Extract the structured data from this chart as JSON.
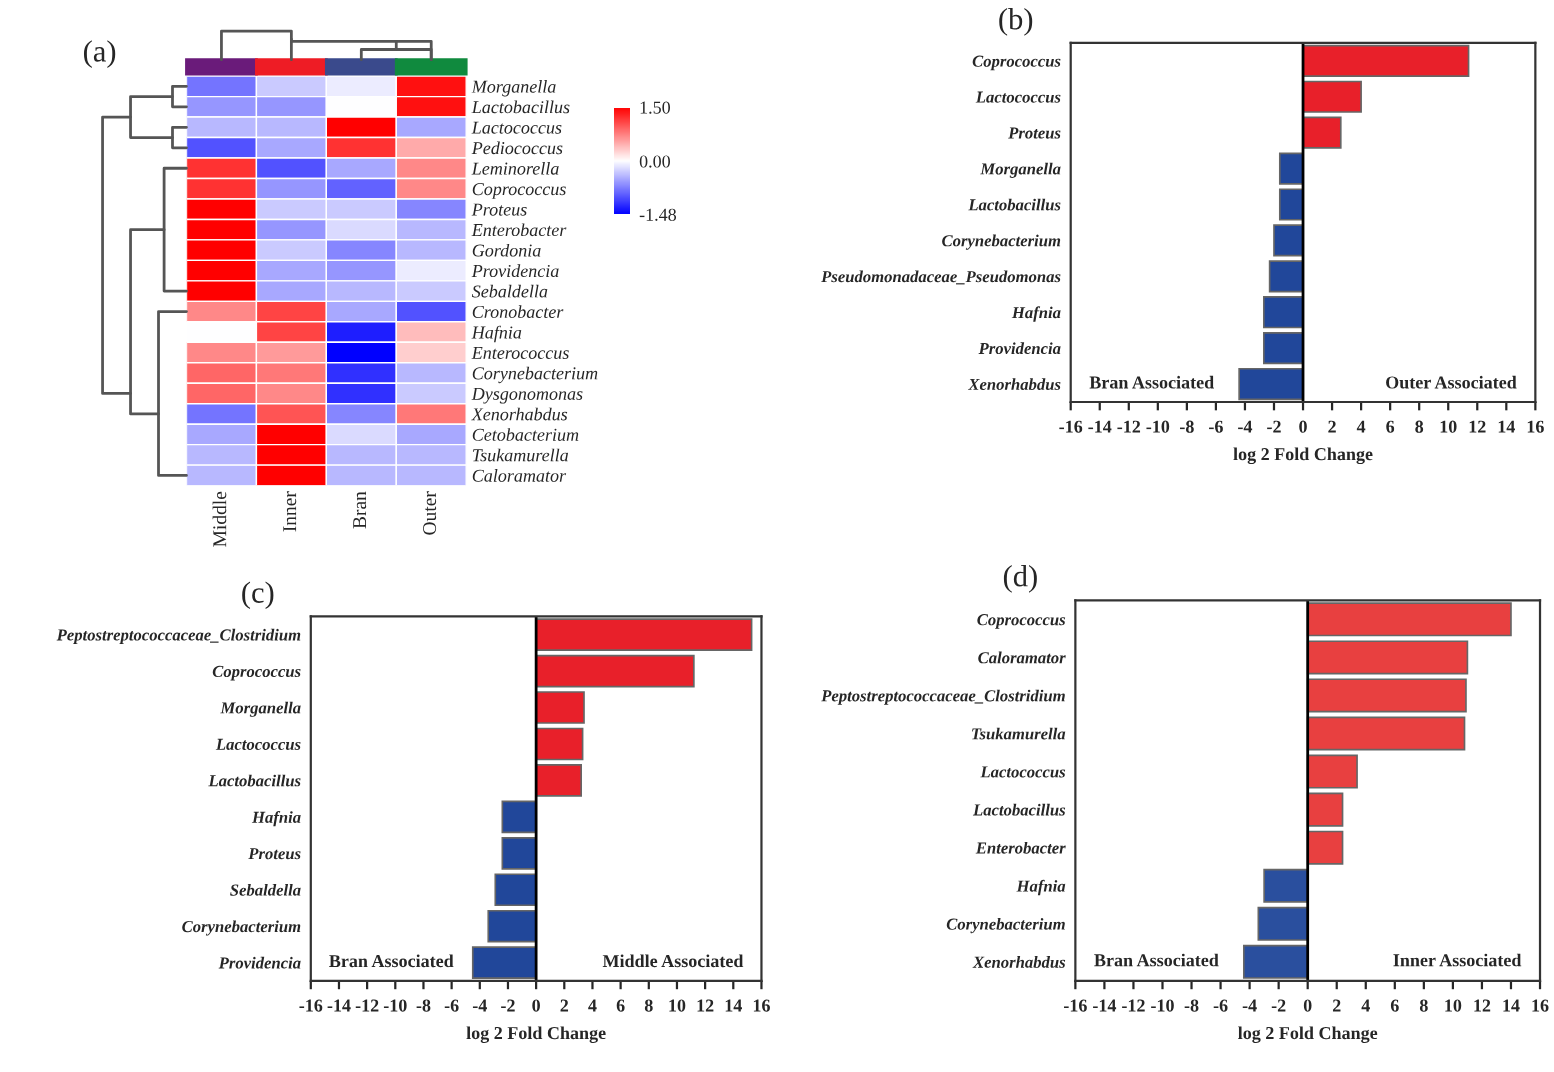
{
  "chart_data": [
    {
      "type": "heatmap",
      "title": "(a)",
      "categories": [
        "Middle",
        "Inner",
        "Bran",
        "Outer"
      ],
      "y_categories": [
        "Morganella",
        "Lactobacillus",
        "Lactococcus",
        "Pediococcus",
        "Leminorella",
        "Coprococcus",
        "Proteus",
        "Enterobacter",
        "Gordonia",
        "Providencia",
        "Sebaldella",
        "Cronobacter",
        "Hafnia",
        "Enterococcus",
        "Corynebacterium",
        "Dysgonomonas",
        "Xenorhabdus",
        "Cetobacterium",
        "Tsukamurella",
        "Caloramator"
      ],
      "cells": [
        [
          -0.8,
          -0.3,
          -0.1,
          1.4
        ],
        [
          -0.6,
          -0.6,
          0.0,
          1.4
        ],
        [
          -0.4,
          -0.4,
          1.5,
          -0.5
        ],
        [
          -1.0,
          -0.5,
          1.2,
          0.5
        ],
        [
          1.2,
          -1.0,
          -0.5,
          0.7
        ],
        [
          1.2,
          -0.6,
          -0.9,
          0.7
        ],
        [
          1.5,
          -0.3,
          -0.3,
          -0.7
        ],
        [
          1.5,
          -0.6,
          -0.2,
          -0.4
        ],
        [
          1.5,
          -0.3,
          -0.7,
          -0.4
        ],
        [
          1.5,
          -0.5,
          -0.6,
          -0.1
        ],
        [
          1.5,
          -0.5,
          -0.4,
          -0.3
        ],
        [
          0.7,
          1.1,
          -0.5,
          -1.0
        ],
        [
          0.0,
          1.1,
          -1.3,
          0.4
        ],
        [
          0.7,
          0.6,
          -1.48,
          0.3
        ],
        [
          0.9,
          0.8,
          -1.2,
          -0.4
        ],
        [
          0.9,
          0.7,
          -1.2,
          -0.3
        ],
        [
          -0.8,
          1.0,
          -0.7,
          0.8
        ],
        [
          -0.5,
          1.5,
          -0.2,
          -0.5
        ],
        [
          -0.4,
          1.5,
          -0.4,
          -0.4
        ],
        [
          -0.4,
          1.5,
          -0.4,
          -0.4
        ]
      ],
      "clim": [
        -1.48,
        1.5
      ],
      "cticks": [
        {
          "value": 1.5,
          "label": "1.50"
        },
        {
          "value": 0.0,
          "label": "0.00"
        },
        {
          "value": -1.48,
          "label": "-1.48"
        }
      ]
    },
    {
      "type": "bar",
      "orientation": "horizontal",
      "title": "(b)",
      "xlabel": "log 2 Fold Change",
      "categories": [
        "Coprococcus",
        "Lactococcus",
        "Proteus",
        "Morganella",
        "Lactobacillus",
        "Corynebacterium",
        "Pseudomonadaceae_Pseudomonas",
        "Hafnia",
        "Providencia",
        "Xenorhabdus"
      ],
      "values": [
        11.4,
        4.0,
        2.6,
        -1.6,
        -1.6,
        -2.0,
        -2.3,
        -2.7,
        -2.7,
        -4.4
      ],
      "colors": [
        "#e8202a",
        "#e8202a",
        "#e8202a",
        "#21479a",
        "#21479a",
        "#21479a",
        "#21479a",
        "#21479a",
        "#21479a",
        "#21479a"
      ],
      "xlim": [
        -16,
        16
      ],
      "xticks": [
        -16,
        -14,
        -12,
        -10,
        -8,
        -6,
        -4,
        -2,
        0,
        2,
        4,
        6,
        8,
        10,
        12,
        14,
        16
      ],
      "ref_lines": [
        {
          "axis": "x",
          "value": 0,
          "label": null,
          "color": "#000000"
        }
      ],
      "annotations": [
        "Bran Associated",
        "Outer Associated"
      ]
    },
    {
      "type": "bar",
      "orientation": "horizontal",
      "title": "(c)",
      "xlabel": "log 2 Fold Change",
      "categories": [
        "Peptostreptococcaceae_Clostridium",
        "Coprococcus",
        "Morganella",
        "Lactococcus",
        "Lactobacillus",
        "Hafnia",
        "Proteus",
        "Sebaldella",
        "Corynebacterium",
        "Providencia"
      ],
      "values": [
        15.3,
        11.2,
        3.4,
        3.3,
        3.2,
        -2.4,
        -2.4,
        -2.9,
        -3.4,
        -4.5
      ],
      "colors": [
        "#e8202a",
        "#e8202a",
        "#e8202a",
        "#e8202a",
        "#e8202a",
        "#21479a",
        "#21479a",
        "#21479a",
        "#21479a",
        "#21479a"
      ],
      "xlim": [
        -16,
        16
      ],
      "xticks": [
        -16,
        -14,
        -12,
        -10,
        -8,
        -6,
        -4,
        -2,
        0,
        2,
        4,
        6,
        8,
        10,
        12,
        14,
        16
      ],
      "ref_lines": [
        {
          "axis": "x",
          "value": 0,
          "label": null,
          "color": "#000000"
        }
      ],
      "annotations": [
        "Bran Associated",
        "Middle Associated"
      ]
    },
    {
      "type": "bar",
      "orientation": "horizontal",
      "title": "(d)",
      "xlabel": "log 2 Fold Change",
      "categories": [
        "Coprococcus",
        "Caloramator",
        "Peptostreptococcaceae_Clostridium",
        "Tsukamurella",
        "Lactococcus",
        "Lactobacillus",
        "Enterobacter",
        "Hafnia",
        "Corynebacterium",
        "Xenorhabdus"
      ],
      "values": [
        14.0,
        11.0,
        10.9,
        10.8,
        3.4,
        2.4,
        2.4,
        -3.0,
        -3.4,
        -4.4
      ],
      "colors": [
        "#e84040",
        "#e84040",
        "#e84040",
        "#e84040",
        "#e84040",
        "#e84040",
        "#e84040",
        "#2a4f9e",
        "#2a4f9e",
        "#2a4f9e"
      ],
      "xlim": [
        -16,
        16
      ],
      "xticks": [
        -16,
        -14,
        -12,
        -10,
        -8,
        -6,
        -4,
        -2,
        0,
        2,
        4,
        6,
        8,
        10,
        12,
        14,
        16
      ],
      "ref_lines": [
        {
          "axis": "x",
          "value": 0,
          "label": null,
          "color": "#000000"
        }
      ],
      "annotations": [
        "Bran Associated",
        "Inner Associated"
      ]
    }
  ]
}
